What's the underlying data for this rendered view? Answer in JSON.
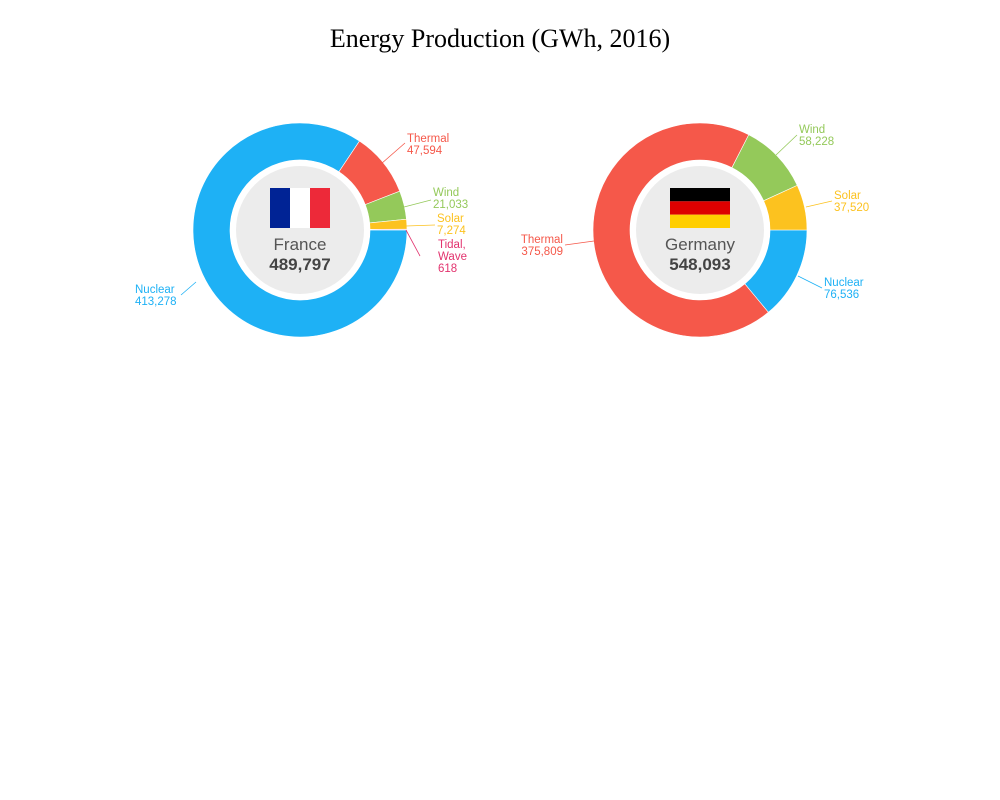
{
  "chart_data": [
    {
      "type": "pie",
      "variant": "donut",
      "country": "France",
      "total": "489,797",
      "flag": "flag-france",
      "slices": [
        {
          "name": "Nuclear",
          "value": 413278,
          "label": "413,278",
          "color": "#1eb1f5"
        },
        {
          "name": "Thermal",
          "value": 47594,
          "label": "47,594",
          "color": "#f5584a"
        },
        {
          "name": "Wind",
          "value": 21033,
          "label": "21,033",
          "color": "#94c95a"
        },
        {
          "name": "Solar",
          "value": 7274,
          "label": "7,274",
          "color": "#fcc21f"
        },
        {
          "name": "Tidal, Wave",
          "value": 618,
          "label": "618",
          "color": "#e2336e"
        }
      ]
    },
    {
      "type": "pie",
      "variant": "donut",
      "country": "Germany",
      "total": "548,093",
      "flag": "flag-germany",
      "slices": [
        {
          "name": "Nuclear",
          "value": 76536,
          "label": "76,536",
          "color": "#1eb1f5"
        },
        {
          "name": "Thermal",
          "value": 375809,
          "label": "375,809",
          "color": "#f5584a"
        },
        {
          "name": "Wind",
          "value": 58228,
          "label": "58,228",
          "color": "#94c95a"
        },
        {
          "name": "Solar",
          "value": 37520,
          "label": "37,520",
          "color": "#fcc21f"
        }
      ]
    }
  ],
  "title": "Energy Production (GWh, 2016)"
}
